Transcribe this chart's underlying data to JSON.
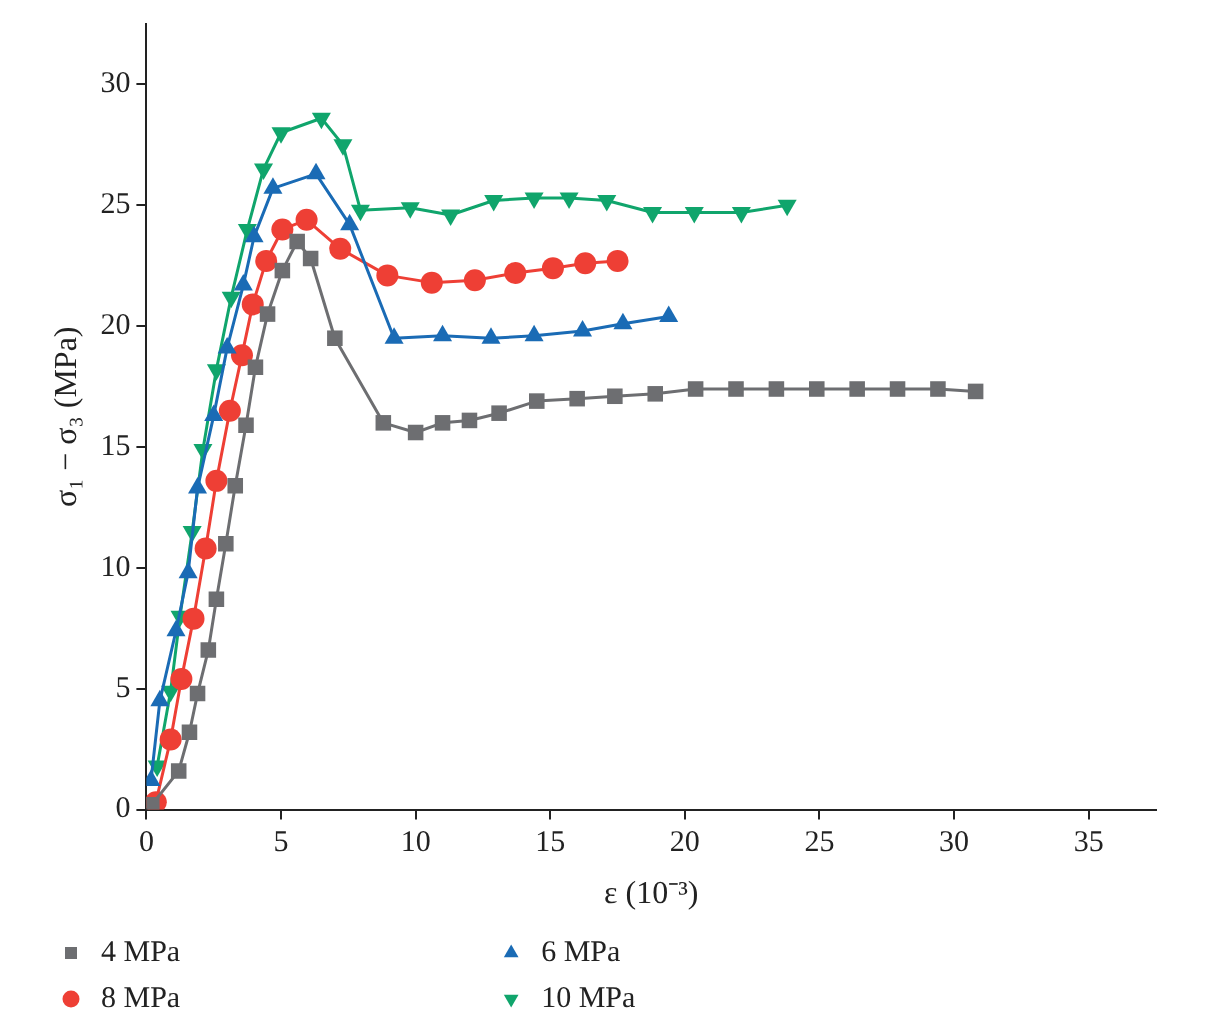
{
  "chart_data": {
    "type": "line",
    "xlabel": "ε (10⁻³)",
    "ylabel": "σ₁ − σ₃ (MPa)",
    "xlim": [
      0,
      37.5
    ],
    "xticks": [
      0,
      5,
      10,
      15,
      20,
      25,
      30,
      35
    ],
    "ylim": [
      0,
      32.5
    ],
    "yticks": [
      0,
      5,
      10,
      15,
      20,
      25,
      30
    ],
    "grid": false,
    "legend": "bottom",
    "line_style": "solid",
    "series": [
      {
        "name": "4 MPa",
        "color": "#6d6e71",
        "marker": "square",
        "x": [
          0.2,
          1.2,
          1.6,
          1.9,
          2.3,
          2.6,
          2.95,
          3.3,
          3.7,
          4.05,
          4.5,
          5.05,
          5.6,
          6.1,
          7.0,
          8.8,
          10.0,
          11.0,
          12.0,
          13.1,
          14.5,
          16.0,
          17.4,
          18.9,
          20.4,
          21.9,
          23.4,
          24.9,
          26.4,
          27.9,
          29.4,
          30.8
        ],
        "values": [
          0.2,
          1.6,
          3.2,
          4.8,
          6.6,
          8.7,
          11.0,
          13.4,
          15.9,
          18.3,
          20.5,
          22.3,
          23.5,
          22.8,
          19.5,
          16.0,
          15.6,
          16.0,
          16.1,
          16.4,
          16.9,
          17.0,
          17.1,
          17.2,
          17.4,
          17.4,
          17.4,
          17.4,
          17.4,
          17.4,
          17.4,
          17.3
        ]
      },
      {
        "name": "6 MPa",
        "color": "#1a6bb5",
        "marker": "triangle",
        "x": [
          0.17,
          0.5,
          1.1,
          1.55,
          1.9,
          2.5,
          3.0,
          3.6,
          4.0,
          4.7,
          6.3,
          7.55,
          9.2,
          11.0,
          12.8,
          14.4,
          16.2,
          17.7,
          19.4
        ],
        "values": [
          1.2,
          4.5,
          7.4,
          9.8,
          13.3,
          16.3,
          19.1,
          21.7,
          23.7,
          25.7,
          26.3,
          24.2,
          19.5,
          19.6,
          19.5,
          19.6,
          19.8,
          20.1,
          20.4
        ]
      },
      {
        "name": "8 MPa",
        "color": "#ee3f35",
        "marker": "circle",
        "x": [
          0.35,
          0.9,
          1.3,
          1.75,
          2.2,
          2.6,
          3.1,
          3.55,
          3.95,
          4.45,
          5.05,
          5.95,
          7.2,
          8.95,
          10.6,
          12.2,
          13.7,
          15.1,
          16.3,
          17.5
        ],
        "values": [
          0.3,
          2.9,
          5.4,
          7.9,
          10.8,
          13.6,
          16.5,
          18.8,
          20.9,
          22.7,
          24.0,
          24.4,
          23.2,
          22.1,
          21.8,
          21.9,
          22.2,
          22.4,
          22.6,
          22.7
        ]
      },
      {
        "name": "10 MPa",
        "color": "#10a56c",
        "marker": "triangle-down",
        "x": [
          0.4,
          0.9,
          1.25,
          1.7,
          2.1,
          2.6,
          3.15,
          3.75,
          4.35,
          5.0,
          6.5,
          7.3,
          7.95,
          9.8,
          11.3,
          12.9,
          14.4,
          15.7,
          17.1,
          18.8,
          20.35,
          22.1,
          23.8
        ],
        "values": [
          1.8,
          4.9,
          8.0,
          11.5,
          14.9,
          18.2,
          21.2,
          24.0,
          26.5,
          28.0,
          28.6,
          27.5,
          24.8,
          24.9,
          24.6,
          25.2,
          25.3,
          25.3,
          25.2,
          24.7,
          24.7,
          24.7,
          25.0
        ]
      }
    ]
  }
}
